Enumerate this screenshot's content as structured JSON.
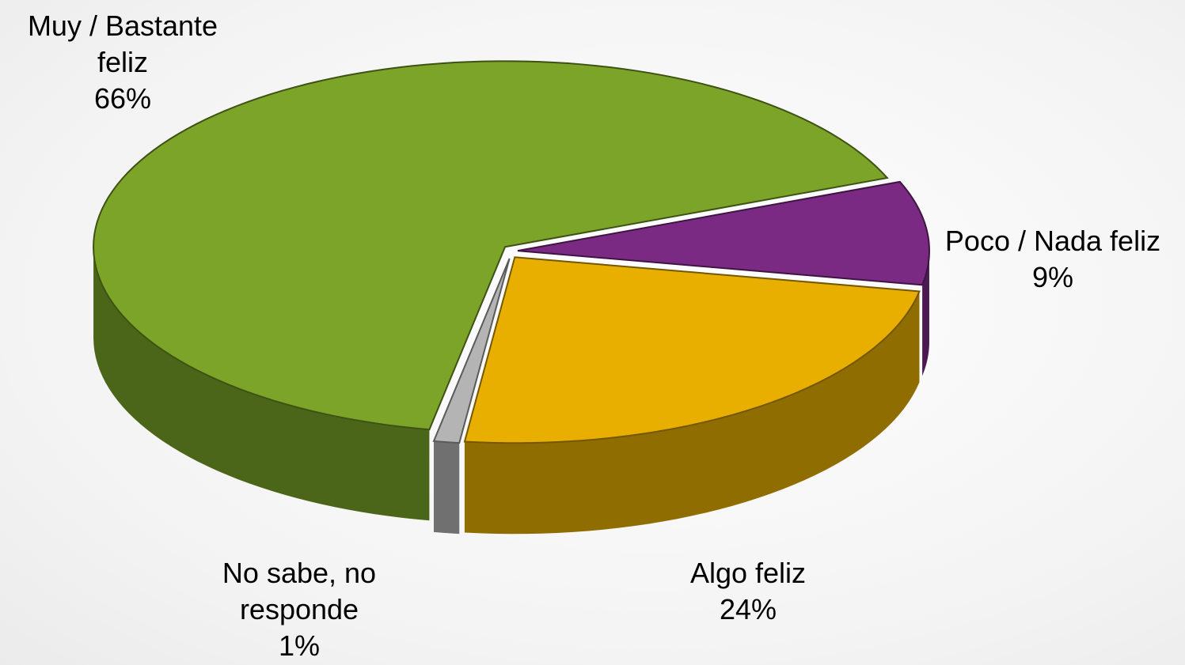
{
  "chart_data": {
    "type": "pie",
    "categories": [
      "Poco / Nada feliz",
      "Algo feliz",
      "No sabe, no responde",
      "Muy / Bastante feliz"
    ],
    "values": [
      9,
      24,
      1,
      66
    ],
    "value_labels": [
      "9%",
      "24%",
      "1%",
      "66%"
    ],
    "colors": [
      "#7b2a84",
      "#e8af00",
      "#b4b4b4",
      "#7ba428"
    ]
  }
}
